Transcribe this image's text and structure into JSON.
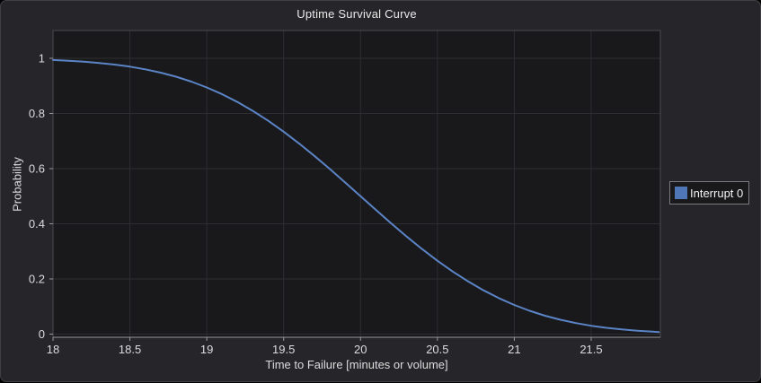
{
  "colors": {
    "series_blue": "#5b84c6",
    "outer_background": "#26262a",
    "plot_background": "#19191b",
    "gridline": "#2e2e32",
    "frame": "#4a4a4f",
    "axis_line": "#97979b",
    "text": "#dcdcdd"
  },
  "legend": {
    "entries": [
      {
        "label": "Interrupt 0",
        "color": "#4f77b8"
      }
    ]
  },
  "chart_data": {
    "type": "line",
    "title": "Uptime Survival Curve",
    "xlabel": "Time to Failure [minutes or volume]",
    "ylabel": "Probability",
    "xlim": [
      18,
      21.95
    ],
    "ylim": [
      0,
      1.1
    ],
    "grid": true,
    "legend_position": "right-outside",
    "x_ticks": [
      18,
      18.5,
      19,
      19.5,
      20,
      20.5,
      21,
      21.5
    ],
    "x_tick_labels": [
      "18",
      "18.5",
      "19",
      "19.5",
      "20",
      "20.5",
      "21",
      "21.5"
    ],
    "y_ticks": [
      0,
      0.2,
      0.4,
      0.6,
      0.8,
      1
    ],
    "y_tick_labels": [
      "0",
      "0.2",
      "0.4",
      "0.6",
      "0.8",
      "1"
    ],
    "series": [
      {
        "name": "Interrupt 0",
        "color": "#5b84c6",
        "x": [
          18.0,
          18.1,
          18.2,
          18.3,
          18.4,
          18.5,
          18.6,
          18.7,
          18.8,
          18.9,
          19.0,
          19.1,
          19.2,
          19.3,
          19.4,
          19.5,
          19.6,
          19.7,
          19.8,
          19.9,
          20.0,
          20.1,
          20.2,
          20.3,
          20.4,
          20.5,
          20.6,
          20.7,
          20.8,
          20.9,
          21.0,
          21.1,
          21.2,
          21.3,
          21.4,
          21.5,
          21.6,
          21.7,
          21.8,
          21.9,
          21.94
        ],
        "y": [
          0.9938,
          0.9912,
          0.9878,
          0.9832,
          0.9772,
          0.9696,
          0.9599,
          0.9479,
          0.9332,
          0.9154,
          0.8944,
          0.8697,
          0.8413,
          0.8092,
          0.7734,
          0.734,
          0.6915,
          0.6462,
          0.5987,
          0.5497,
          0.5,
          0.4503,
          0.4013,
          0.3538,
          0.3085,
          0.266,
          0.2266,
          0.1908,
          0.1587,
          0.1303,
          0.1056,
          0.0846,
          0.0668,
          0.0521,
          0.0401,
          0.0304,
          0.0228,
          0.0168,
          0.0122,
          0.0088,
          0.0076
        ]
      }
    ]
  }
}
